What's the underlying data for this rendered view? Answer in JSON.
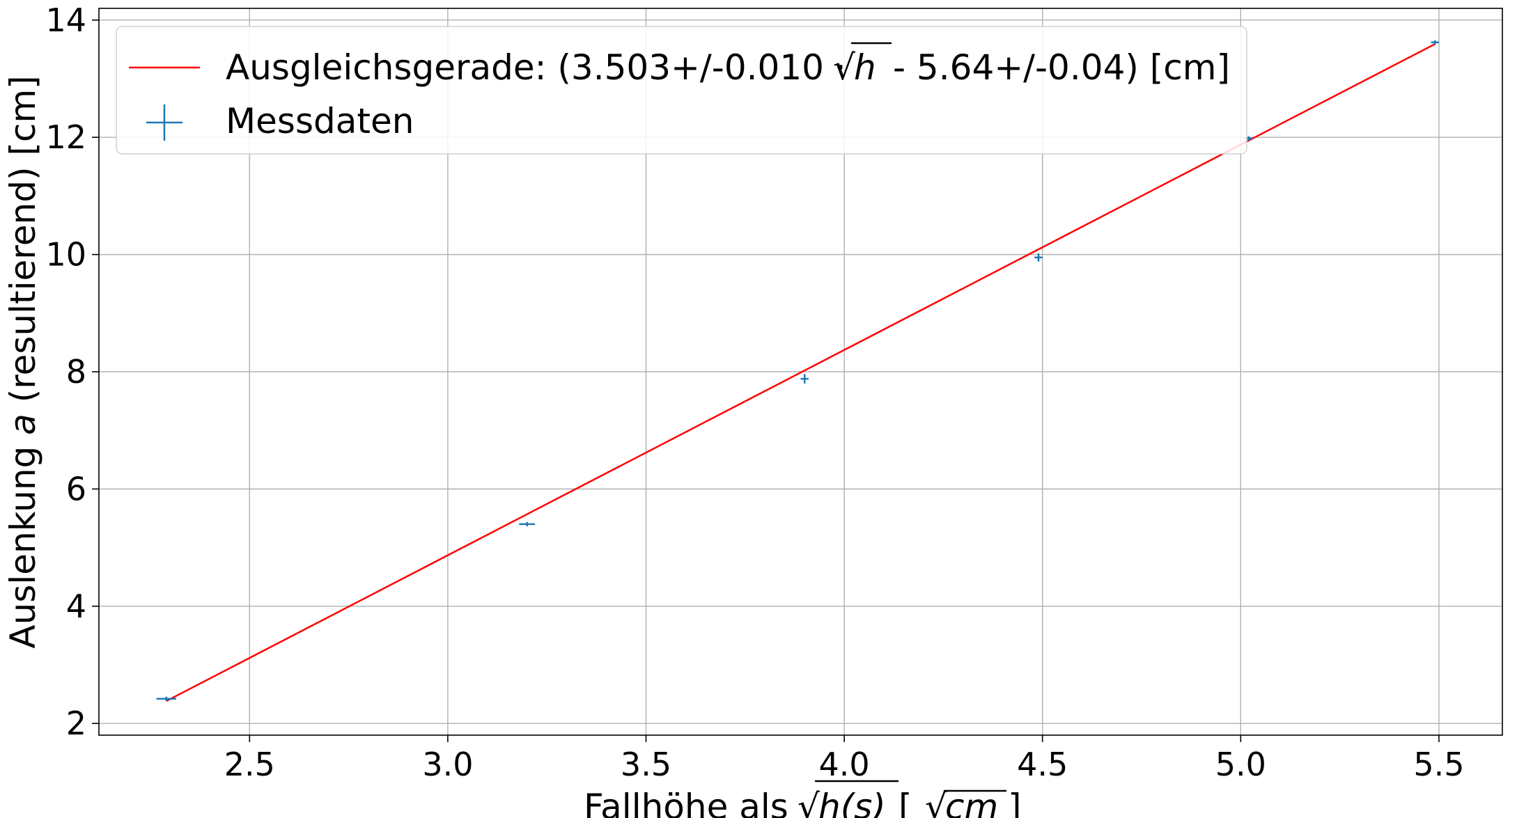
{
  "chart_data": {
    "type": "scatter",
    "xlabel": {
      "prefix": "Fallhöhe als ",
      "sqrt_arg": "h(s)",
      "unit_open": " [",
      "unit_sqrt": "√",
      "unit_arg": "cm",
      "unit_close": "]"
    },
    "ylabel": {
      "prefix": "Auslenkung ",
      "symbol": "a",
      "suffix": " (resultierend) [cm]"
    },
    "xlim": [
      2.12,
      5.66
    ],
    "ylim": [
      1.8,
      14.2
    ],
    "grid": true,
    "legend_position": "top-left",
    "x_ticks": [
      {
        "value": 2.5,
        "label": "2.5"
      },
      {
        "value": 3.0,
        "label": "3.0"
      },
      {
        "value": 3.5,
        "label": "3.5"
      },
      {
        "value": 4.0,
        "label": "4.0"
      },
      {
        "value": 4.5,
        "label": "4.5"
      },
      {
        "value": 5.0,
        "label": "5.0"
      },
      {
        "value": 5.5,
        "label": "5.5"
      }
    ],
    "y_ticks": [
      {
        "value": 2,
        "label": "2"
      },
      {
        "value": 4,
        "label": "4"
      },
      {
        "value": 6,
        "label": "6"
      },
      {
        "value": 8,
        "label": "8"
      },
      {
        "value": 10,
        "label": "10"
      },
      {
        "value": 12,
        "label": "12"
      },
      {
        "value": 14,
        "label": "14"
      }
    ],
    "series": [
      {
        "kind": "line",
        "legend_label": {
          "prefix": "Ausgleichsgerade: (3.503+/-0.010 ·",
          "sqrt_arg": "h",
          "suffix": " - 5.64+/-0.04) [cm]"
        },
        "slope": 3.503,
        "intercept": -5.64,
        "x_range": [
          2.29,
          5.49
        ],
        "color": "#ff0000"
      },
      {
        "kind": "errorbar",
        "name": "Messdaten",
        "color": "#1f77b4",
        "x": [
          2.29,
          3.2,
          3.9,
          4.49,
          5.02,
          5.49
        ],
        "y": [
          2.42,
          5.4,
          7.88,
          9.95,
          11.98,
          13.62
        ],
        "x_err": [
          0.025,
          0.02,
          0.01,
          0.01,
          0.01,
          0.01
        ],
        "y_err": [
          0.02,
          0.02,
          0.08,
          0.07,
          0.03,
          0.03
        ]
      }
    ]
  }
}
